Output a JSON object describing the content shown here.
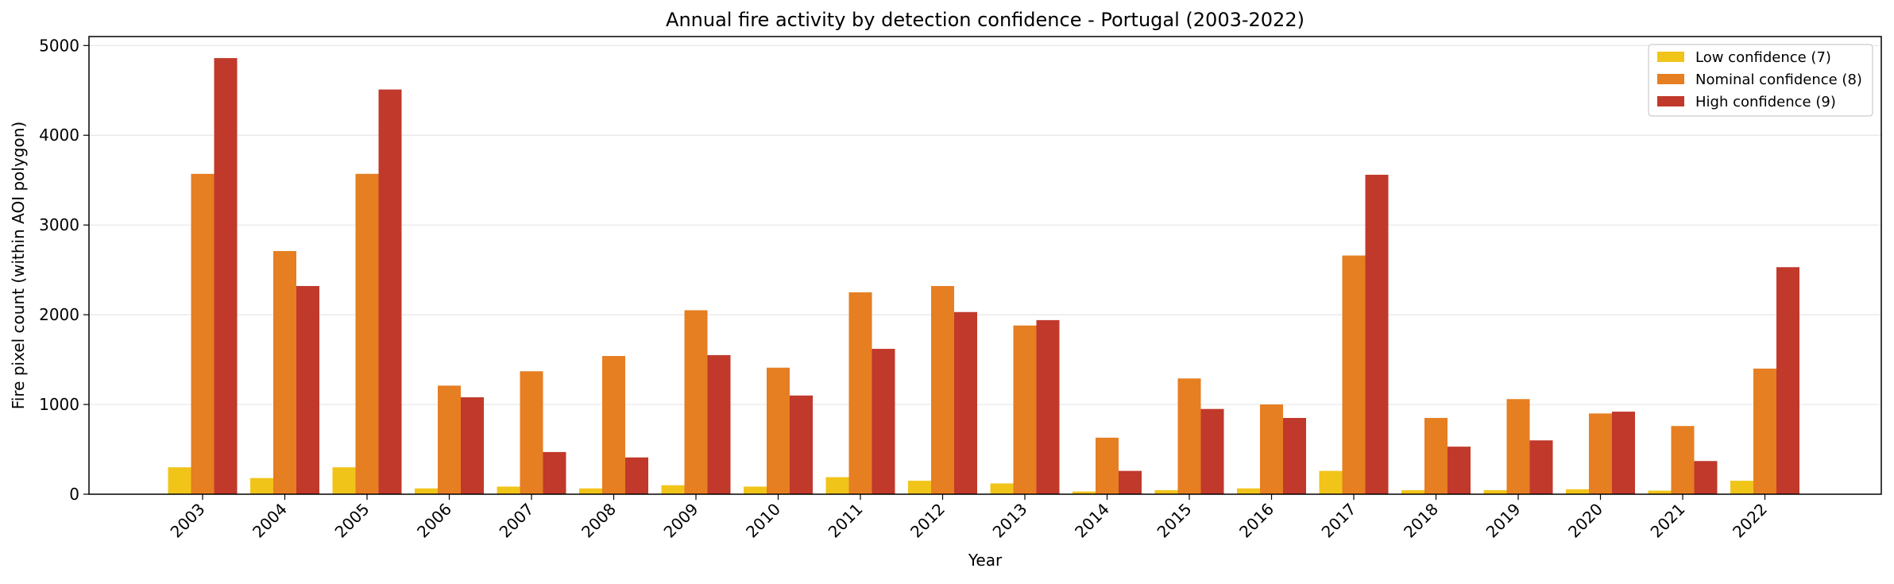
{
  "chart_data": {
    "type": "bar",
    "title": "Annual fire activity by detection confidence - Portugal (2003-2022)",
    "xlabel": "Year",
    "ylabel": "Fire pixel count (within AOI polygon)",
    "ylim": [
      0,
      5100
    ],
    "yticks": [
      0,
      1000,
      2000,
      3000,
      4000,
      5000
    ],
    "grid": "y",
    "legend_position": "top-right",
    "categories": [
      "2003",
      "2004",
      "2005",
      "2006",
      "2007",
      "2008",
      "2009",
      "2010",
      "2011",
      "2012",
      "2013",
      "2014",
      "2015",
      "2016",
      "2017",
      "2018",
      "2019",
      "2020",
      "2021",
      "2022"
    ],
    "series": [
      {
        "name": "Low confidence (7)",
        "color": "#f1c419",
        "values": [
          300,
          180,
          300,
          65,
          85,
          65,
          100,
          85,
          190,
          150,
          120,
          30,
          45,
          65,
          260,
          45,
          45,
          55,
          40,
          150
        ]
      },
      {
        "name": "Nominal confidence (8)",
        "color": "#e67e22",
        "values": [
          3570,
          2710,
          3570,
          1210,
          1370,
          1540,
          2050,
          1410,
          2250,
          2320,
          1880,
          630,
          1290,
          1000,
          2660,
          850,
          1060,
          900,
          760,
          1400
        ]
      },
      {
        "name": "High confidence (9)",
        "color": "#c0392b",
        "values": [
          4860,
          2320,
          4510,
          1080,
          470,
          410,
          1550,
          1100,
          1620,
          2030,
          1940,
          260,
          950,
          850,
          3560,
          530,
          600,
          920,
          370,
          2530
        ]
      }
    ]
  }
}
